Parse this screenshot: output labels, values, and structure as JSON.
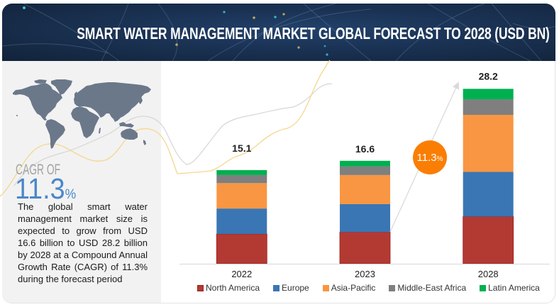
{
  "header": {
    "title": "SMART WATER MANAGEMENT MARKET GLOBAL FORECAST TO 2028 (USD BN)"
  },
  "summary": {
    "cagr_label": "CAGR OF",
    "cagr_value": "11.3",
    "cagr_unit": "%",
    "description": "The global smart water management market size is expected to grow from USD 16.6 billion to USD 28.2 billion by 2028 at a Compound Annual Growth Rate (CAGR) of 11.3% during the forecast period",
    "accent_color": "#4a87cb"
  },
  "chart_data": {
    "type": "bar",
    "stacked": true,
    "title": "SMART WATER MANAGEMENT MARKET GLOBAL FORECAST TO 2028 (USD BN)",
    "xlabel": "",
    "ylabel": "",
    "ylim": [
      0,
      32
    ],
    "grid": false,
    "legend": "bottom",
    "categories": [
      "2022",
      "2023",
      "2028"
    ],
    "totals": [
      15.1,
      16.6,
      28.2
    ],
    "total_labels": [
      "15.1",
      "16.6",
      "28.2"
    ],
    "series": [
      {
        "name": "North America",
        "color": "#b33a32",
        "values": [
          4.8,
          5.1,
          7.6
        ]
      },
      {
        "name": "Europe",
        "color": "#3a76b4",
        "values": [
          4.1,
          4.5,
          7.2
        ]
      },
      {
        "name": "Asia-Pacific",
        "color": "#f89644",
        "values": [
          4.1,
          4.7,
          9.2
        ]
      },
      {
        "name": "Middle-East Africa",
        "color": "#7f7f7f",
        "values": [
          1.3,
          1.4,
          2.5
        ]
      },
      {
        "name": "Latin America",
        "color": "#00b050",
        "values": [
          0.8,
          0.9,
          1.7
        ]
      }
    ],
    "annotation": {
      "label": "11.3",
      "unit": "%",
      "meaning": "CAGR 2023-2028",
      "color": "#fa7e03"
    }
  }
}
